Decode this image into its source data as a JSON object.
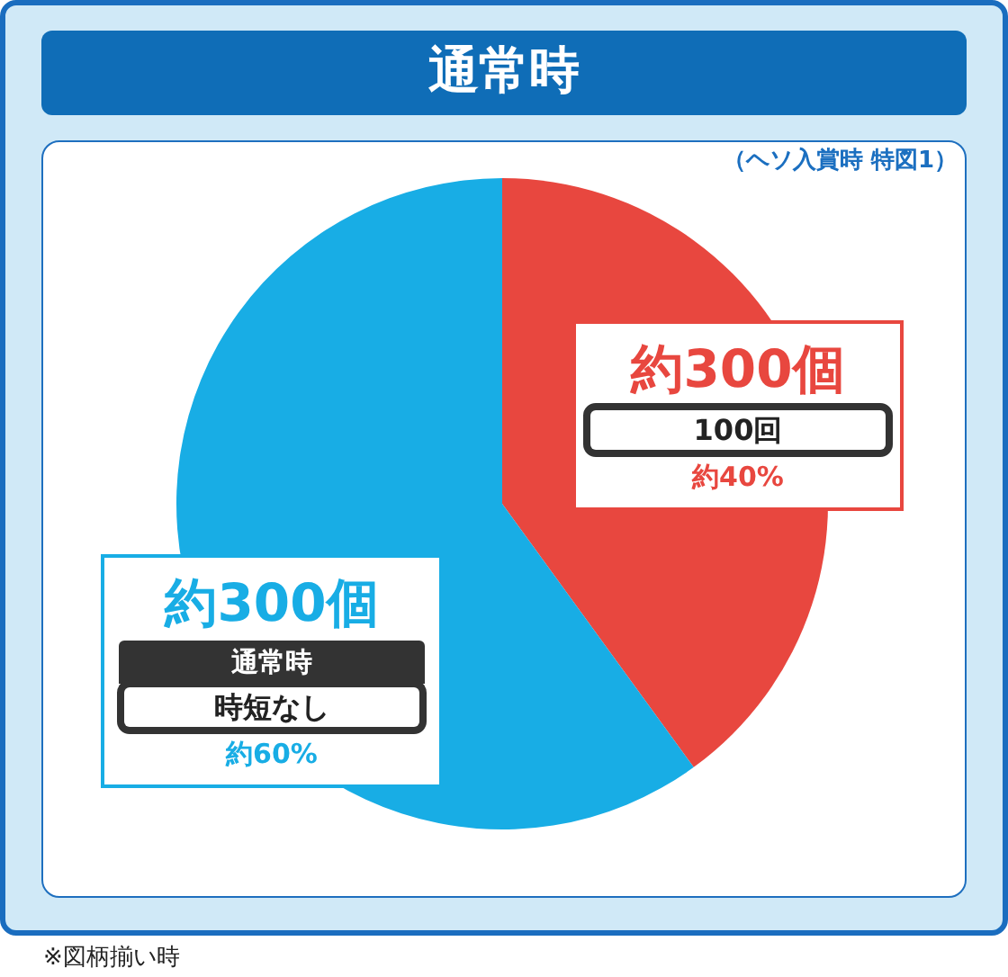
{
  "chart_data": {
    "type": "pie",
    "title": "通常時",
    "subtitle": "（ヘソ入賞時 特図1）",
    "categories": [
      null,
      "通常時"
    ],
    "values": [
      40,
      60
    ],
    "colors": [
      "#e8473f",
      "#18ade5"
    ],
    "value_labels": [
      "約40%",
      "約60%"
    ],
    "annotations": [
      "約300個",
      "100回",
      "約300個",
      "時短なし",
      "※図柄揃い時"
    ]
  }
}
